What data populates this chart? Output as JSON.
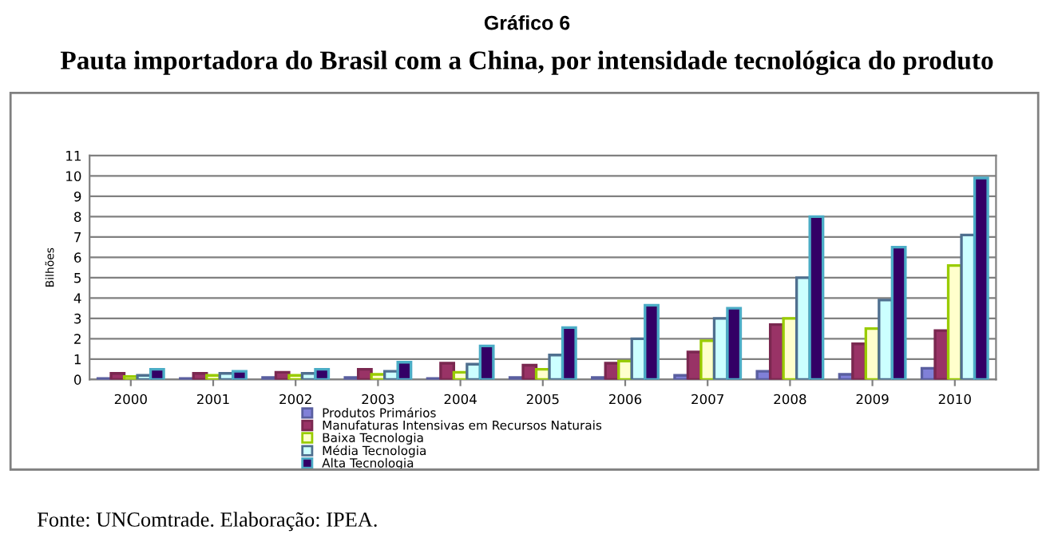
{
  "chart_data": {
    "type": "bar",
    "title": "Gráfico 6",
    "subtitle": "Pauta importadora do Brasil com a China, por intensidade tecnológica do produto",
    "ylabel": "Bilhões",
    "categories": [
      "2000",
      "2001",
      "2002",
      "2003",
      "2004",
      "2005",
      "2006",
      "2007",
      "2008",
      "2009",
      "2010"
    ],
    "series": [
      {
        "name": "Produtos Primários",
        "color": "#8080d8",
        "values": [
          0.05,
          0.05,
          0.1,
          0.1,
          0.05,
          0.1,
          0.1,
          0.2,
          0.4,
          0.25,
          0.55
        ]
      },
      {
        "name": "Manufaturas Intensivas em Recursos Naturais",
        "color": "#993366",
        "values": [
          0.3,
          0.3,
          0.35,
          0.5,
          0.8,
          0.7,
          0.8,
          1.35,
          2.7,
          1.75,
          2.4
        ]
      },
      {
        "name": "Baixa Tecnologia",
        "color": "#ffffcc",
        "values": [
          0.15,
          0.2,
          0.2,
          0.25,
          0.35,
          0.5,
          0.9,
          1.9,
          3.0,
          2.5,
          5.6
        ]
      },
      {
        "name": "Média Tecnologia",
        "color": "#ccffff",
        "values": [
          0.2,
          0.3,
          0.3,
          0.4,
          0.75,
          1.2,
          2.0,
          3.0,
          5.0,
          3.9,
          7.1
        ]
      },
      {
        "name": "Alta Tecnologia",
        "color": "#330066",
        "values": [
          0.5,
          0.4,
          0.5,
          0.85,
          1.65,
          2.55,
          3.65,
          3.5,
          8.0,
          6.5,
          9.9
        ]
      }
    ],
    "ylim": [
      0,
      11
    ],
    "yticks": [
      0,
      1,
      2,
      3,
      4,
      5,
      6,
      7,
      8,
      9,
      10,
      11
    ],
    "grid": "y",
    "legend": "bottom",
    "annotations": [
      "Fonte: UNComtrade. Elaboração: IPEA."
    ]
  }
}
